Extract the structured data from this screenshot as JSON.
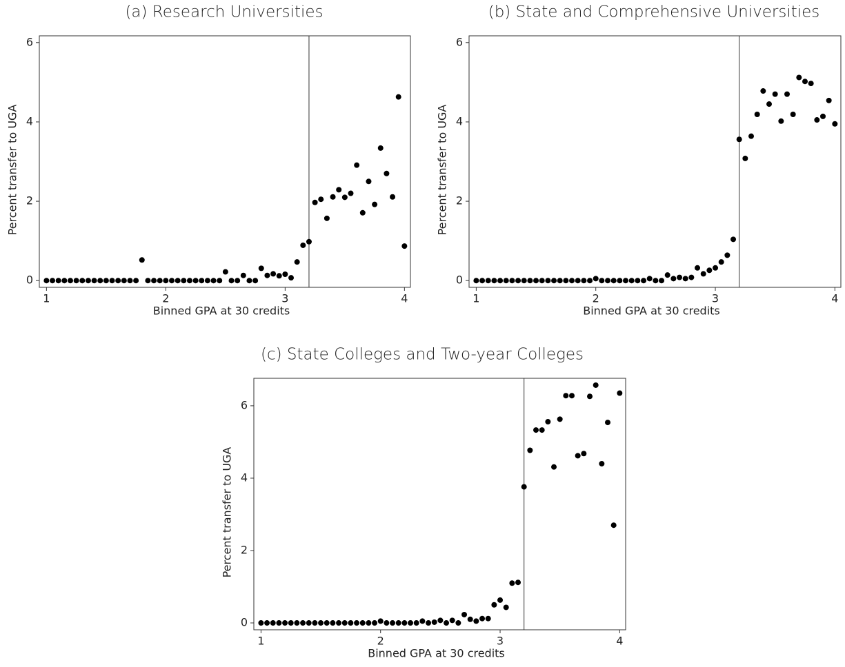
{
  "chart_data": [
    {
      "type": "scatter",
      "title": "(a) Research Universities",
      "xlabel": "Binned GPA at 30 credits",
      "ylabel": "Percent transfer to UGA",
      "color": "#000000",
      "vline": 3.2,
      "x": [
        1,
        1.05,
        1.1,
        1.15,
        1.2,
        1.25,
        1.3,
        1.35,
        1.4,
        1.45,
        1.5,
        1.55,
        1.6,
        1.65,
        1.7,
        1.75,
        1.8,
        1.85,
        1.9,
        1.95,
        2,
        2.05,
        2.1,
        2.15,
        2.2,
        2.25,
        2.3,
        2.35,
        2.4,
        2.45,
        2.5,
        2.55,
        2.6,
        2.65,
        2.7,
        2.75,
        2.8,
        2.85,
        2.9,
        2.95,
        3,
        3.05,
        3.1,
        3.15,
        3.2,
        3.25,
        3.3,
        3.35,
        3.4,
        3.45,
        3.5,
        3.55,
        3.6,
        3.65,
        3.7,
        3.75,
        3.8,
        3.85,
        3.9,
        3.95,
        4
      ],
      "values": [
        0,
        0,
        0,
        0,
        0,
        0,
        0,
        0,
        0,
        0,
        0,
        0,
        0,
        0,
        0,
        0,
        0.52,
        0,
        0,
        0,
        0,
        0,
        0,
        0,
        0,
        0,
        0,
        0,
        0,
        0,
        0.22,
        0,
        0,
        0.13,
        0,
        0,
        0.31,
        0.13,
        0.17,
        0.12,
        0.16,
        0.07,
        0.47,
        0.89,
        0.98,
        1.97,
        2.05,
        1.57,
        2.11,
        2.29,
        2.1,
        2.2,
        2.91,
        1.71,
        2.5,
        1.92,
        3.34,
        2.7,
        2.11,
        4.63,
        0.87
      ],
      "xlim": [
        0.94,
        4.05
      ],
      "ylim": [
        -0.17,
        6.17
      ],
      "xticks": [
        1,
        2,
        3,
        4
      ],
      "yticks": [
        0,
        2,
        4,
        6
      ]
    },
    {
      "type": "scatter",
      "title": "(b) State and Comprehensive Universities",
      "xlabel": "Binned GPA at 30 credits",
      "ylabel": "Percent transfer to UGA",
      "color": "#000000",
      "vline": 3.2,
      "x": [
        1,
        1.05,
        1.1,
        1.15,
        1.2,
        1.25,
        1.3,
        1.35,
        1.4,
        1.45,
        1.5,
        1.55,
        1.6,
        1.65,
        1.7,
        1.75,
        1.8,
        1.85,
        1.9,
        1.95,
        2,
        2.05,
        2.1,
        2.15,
        2.2,
        2.25,
        2.3,
        2.35,
        2.4,
        2.45,
        2.5,
        2.55,
        2.6,
        2.65,
        2.7,
        2.75,
        2.8,
        2.85,
        2.9,
        2.95,
        3,
        3.05,
        3.1,
        3.15,
        3.2,
        3.25,
        3.3,
        3.35,
        3.4,
        3.45,
        3.5,
        3.55,
        3.6,
        3.65,
        3.7,
        3.75,
        3.8,
        3.85,
        3.9,
        3.95,
        4
      ],
      "values": [
        0,
        0,
        0,
        0,
        0,
        0,
        0,
        0,
        0,
        0,
        0,
        0,
        0,
        0,
        0,
        0,
        0,
        0,
        0,
        0,
        0.05,
        0,
        0,
        0,
        0,
        0,
        0,
        0,
        0,
        0.05,
        0,
        0,
        0.14,
        0.05,
        0.08,
        0.05,
        0.08,
        0.32,
        0.17,
        0.26,
        0.32,
        0.47,
        0.64,
        1.04,
        3.56,
        3.08,
        3.64,
        4.19,
        4.78,
        4.45,
        4.7,
        4.02,
        4.7,
        4.19,
        5.12,
        5.02,
        4.97,
        4.05,
        4.14,
        4.54,
        3.95
      ],
      "xlim": [
        0.94,
        4.05
      ],
      "ylim": [
        -0.17,
        6.17
      ],
      "xticks": [
        1,
        2,
        3,
        4
      ],
      "yticks": [
        0,
        2,
        4,
        6
      ]
    },
    {
      "type": "scatter",
      "title": "(c) State Colleges and Two-year Colleges",
      "xlabel": "Binned GPA at 30 credits",
      "ylabel": "Percent transfer to UGA",
      "color": "#000000",
      "vline": 3.2,
      "x": [
        1,
        1.05,
        1.1,
        1.15,
        1.2,
        1.25,
        1.3,
        1.35,
        1.4,
        1.45,
        1.5,
        1.55,
        1.6,
        1.65,
        1.7,
        1.75,
        1.8,
        1.85,
        1.9,
        1.95,
        2,
        2.05,
        2.1,
        2.15,
        2.2,
        2.25,
        2.3,
        2.35,
        2.4,
        2.45,
        2.5,
        2.55,
        2.6,
        2.65,
        2.7,
        2.75,
        2.8,
        2.85,
        2.9,
        2.95,
        3,
        3.05,
        3.1,
        3.15,
        3.2,
        3.25,
        3.3,
        3.35,
        3.4,
        3.45,
        3.5,
        3.55,
        3.6,
        3.65,
        3.7,
        3.75,
        3.8,
        3.85,
        3.9,
        3.95,
        4
      ],
      "values": [
        0,
        0,
        0,
        0,
        0,
        0,
        0,
        0,
        0,
        0,
        0,
        0,
        0,
        0,
        0,
        0,
        0,
        0,
        0,
        0,
        0.05,
        0,
        0,
        0,
        0,
        0,
        0,
        0.05,
        0,
        0.02,
        0.07,
        0,
        0.07,
        0,
        0.23,
        0.1,
        0.05,
        0.12,
        0.12,
        0.5,
        0.63,
        0.43,
        1.1,
        1.12,
        3.76,
        4.77,
        5.33,
        5.33,
        5.56,
        4.31,
        5.63,
        6.28,
        6.28,
        4.62,
        4.68,
        6.26,
        6.57,
        4.4,
        5.54,
        2.7,
        6.35
      ],
      "xlim": [
        0.94,
        4.05
      ],
      "ylim": [
        -0.19,
        6.76
      ],
      "xticks": [
        1,
        2,
        3,
        4
      ],
      "yticks": [
        0,
        2,
        4,
        6
      ]
    }
  ]
}
